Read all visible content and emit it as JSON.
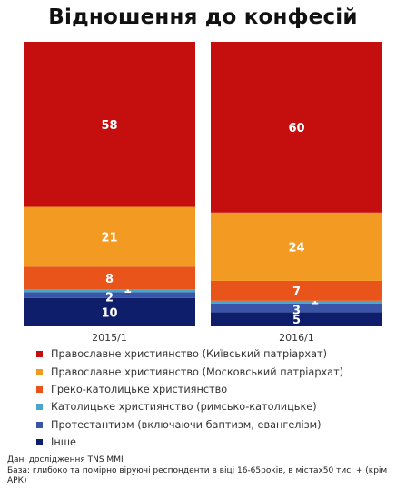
{
  "chart_data": {
    "type": "bar",
    "stacked": true,
    "title": "Відношення до конфесій",
    "xlabel": "",
    "ylabel": "",
    "ylim": [
      0,
      100
    ],
    "grid": false,
    "legend_position": "bottom",
    "categories": [
      "2015/1",
      "2016/1"
    ],
    "series": [
      {
        "name": "Інше",
        "color": "#0f1e6b",
        "values": [
          10,
          5
        ]
      },
      {
        "name": "Протестантизм  (включаючи баптизм, евангелізм)",
        "color": "#3a55a8",
        "values": [
          2,
          3
        ]
      },
      {
        "name": "Католицьке християнство (римсько-католицьке)",
        "color": "#4aa6c8",
        "values": [
          1,
          1
        ]
      },
      {
        "name": "Греко-католицьке християнство",
        "color": "#e8541a",
        "values": [
          8,
          7
        ]
      },
      {
        "name": "Православне християнство (Московський патріархат)",
        "color": "#f39a22",
        "values": [
          21,
          24
        ]
      },
      {
        "name": "Православне християнство (Київський патріархат)",
        "color": "#c50f0f",
        "values": [
          58,
          60
        ]
      }
    ],
    "data_labels": [
      [
        "10",
        "5"
      ],
      [
        "2",
        "3"
      ],
      [
        "1",
        "1"
      ],
      [
        "8",
        "7"
      ],
      [
        "21",
        "24"
      ],
      [
        "58",
        "60"
      ]
    ]
  },
  "legend": [
    {
      "label": "Православне християнство (Київський патріархат)",
      "color": "#c50f0f"
    },
    {
      "label": "Православне християнство (Московський патріархат)",
      "color": "#f39a22"
    },
    {
      "label": "Греко-католицьке християнство",
      "color": "#e8541a"
    },
    {
      "label": "Католицьке християнство (римсько-католицьке)",
      "color": "#4aa6c8"
    },
    {
      "label": "Протестантизм  (включаючи баптизм, евангелізм)",
      "color": "#3a55a8"
    },
    {
      "label": "Інше",
      "color": "#0f1e6b"
    }
  ],
  "footnote": {
    "line1": "Дані дослідження TNS MMI",
    "line2": "База: глибоко та помірно віруючі респонденти в віці 16-65років, в містах50 тис. + (крім АРК)"
  }
}
